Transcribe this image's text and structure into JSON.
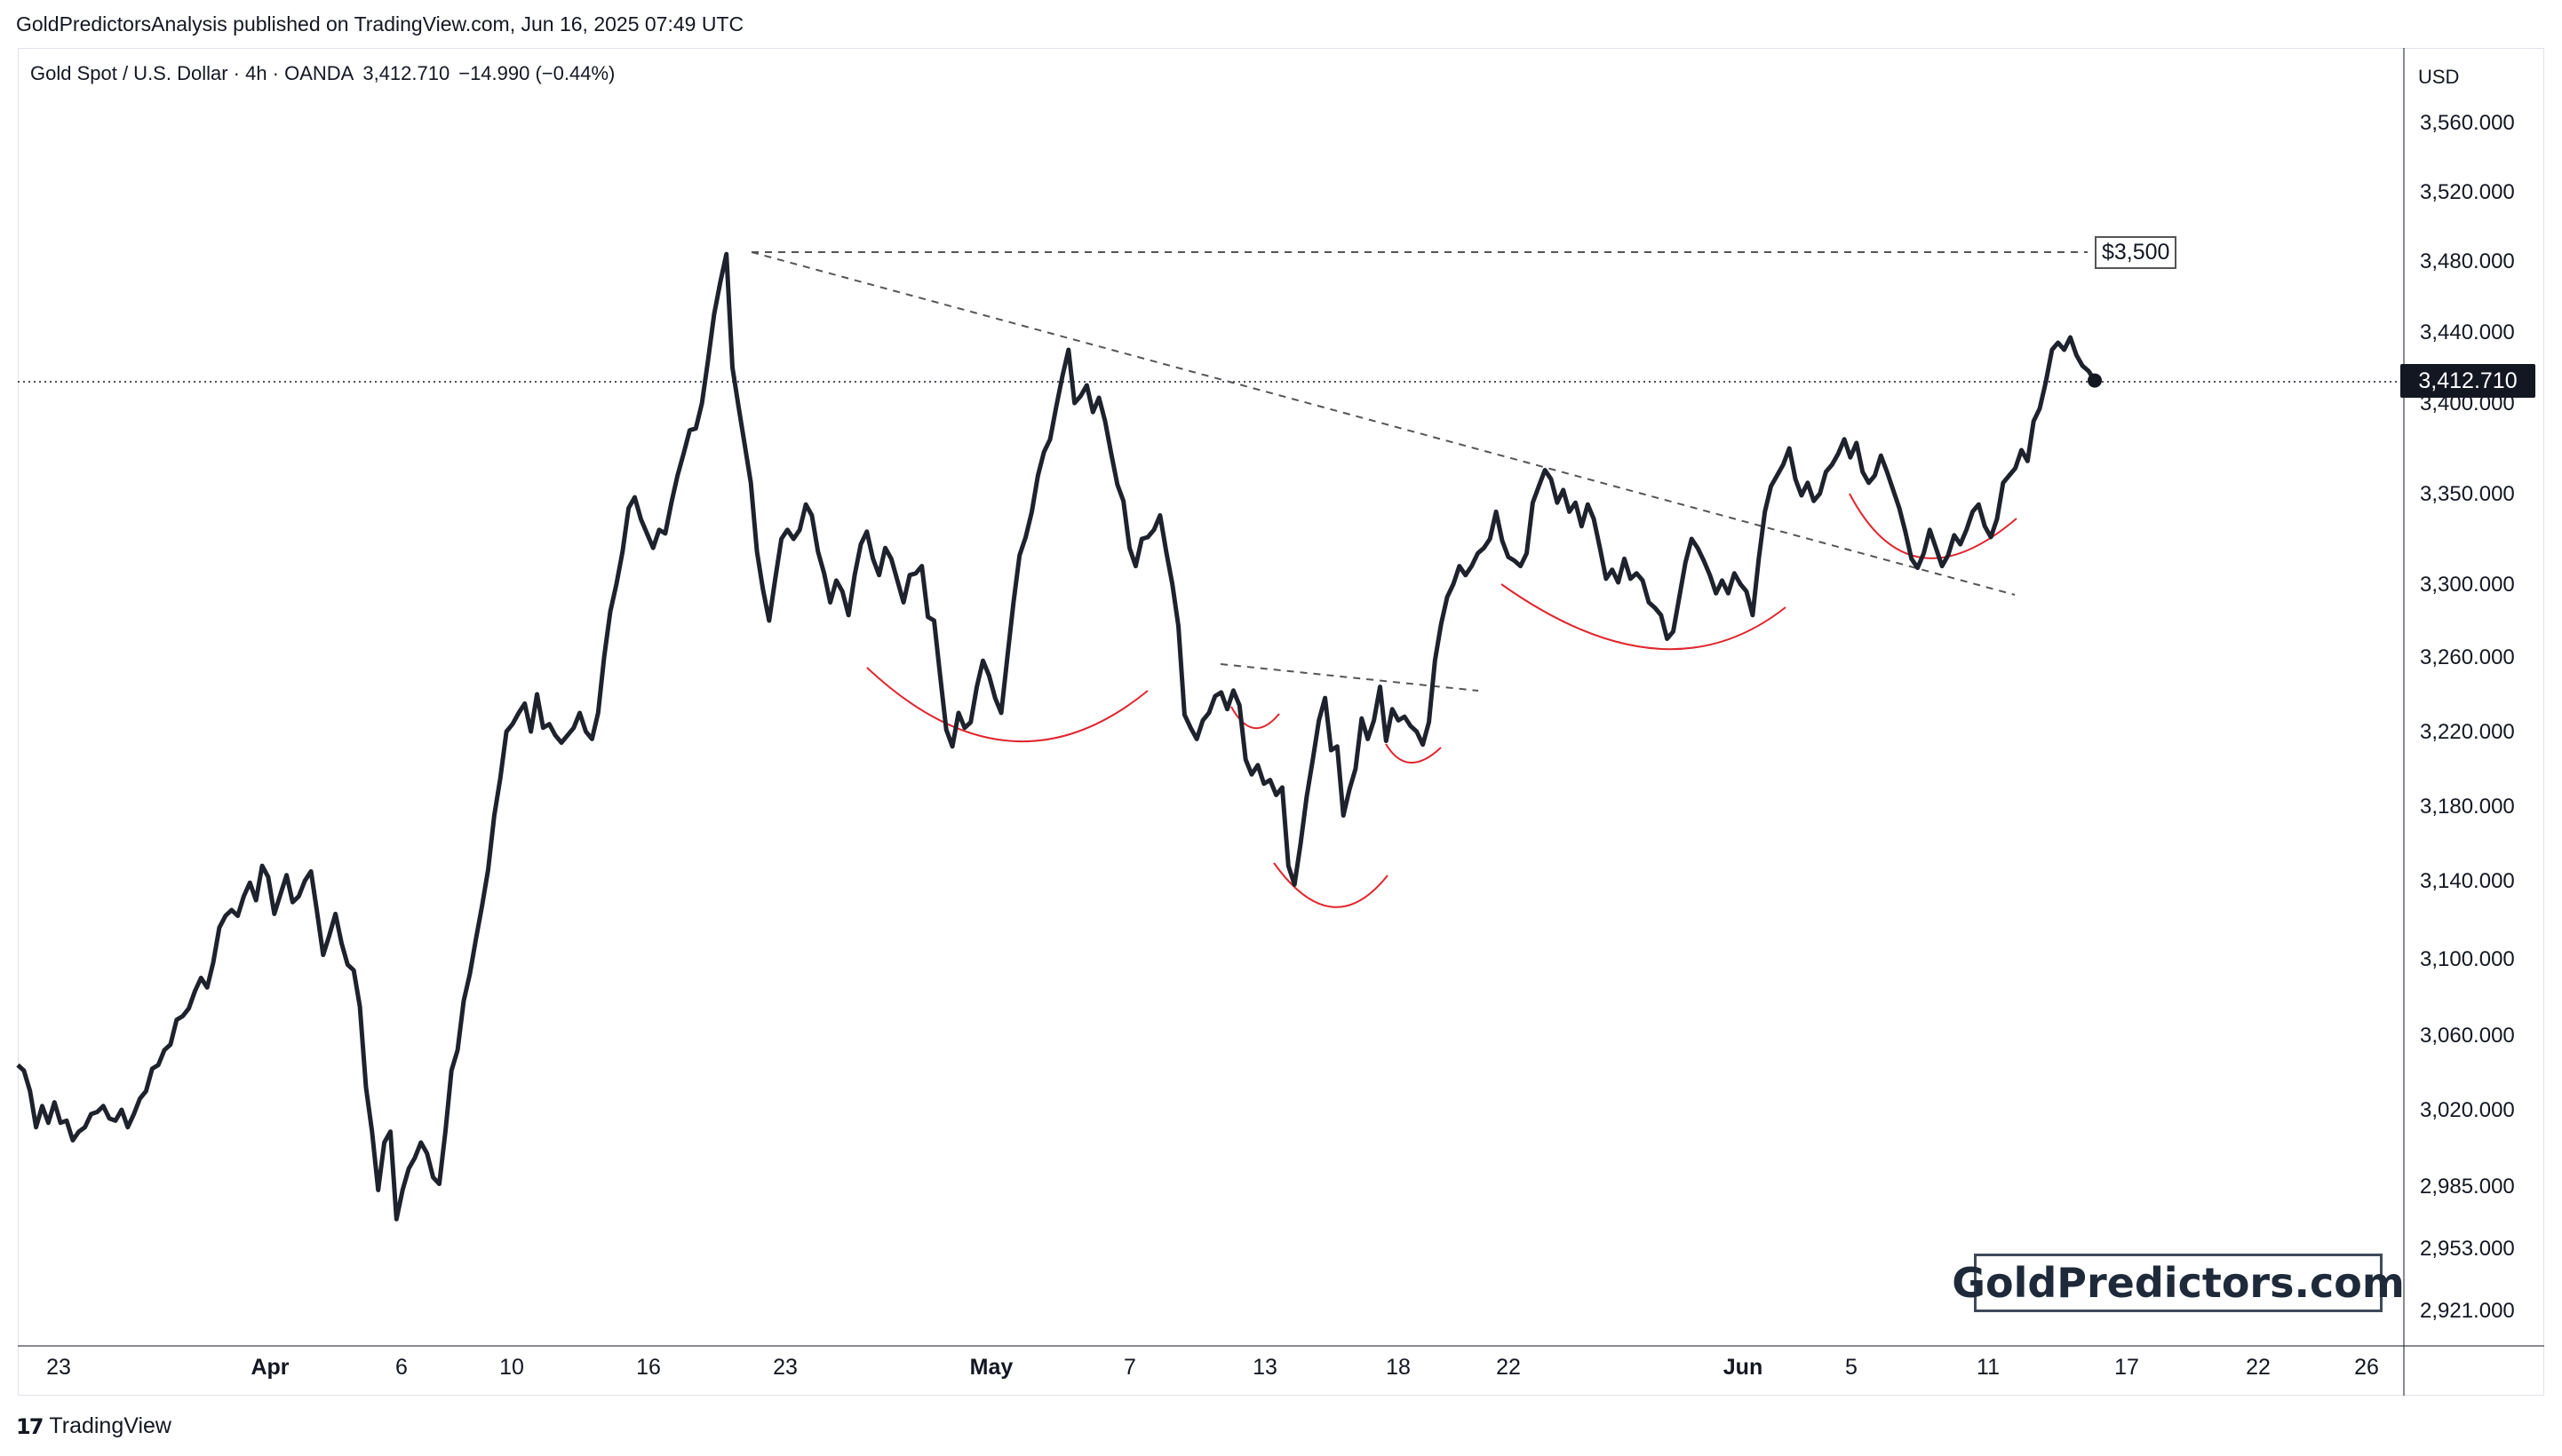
{
  "header": {
    "published": "GoldPredictorsAnalysis published on TradingView.com, Jun 16, 2025 07:49 UTC"
  },
  "legend": {
    "symbol": "Gold Spot / U.S. Dollar · 4h · OANDA",
    "last": "3,412.710",
    "change": "−14.990 (−0.44%)"
  },
  "price_axis": {
    "currency": "USD",
    "last_price_label": "3,412.710"
  },
  "annotations": {
    "target_label": "$3,500"
  },
  "watermark": "GoldPredictors.com",
  "footer": {
    "brand": "TradingView",
    "logo": "17"
  },
  "colors": {
    "price_line": "#1e222d",
    "arc": "#e0262e",
    "dashed": "#555555",
    "badge_bg": "#131722"
  },
  "chart_data": {
    "type": "line",
    "series": [
      {
        "values": [
          3044,
          3041,
          3030,
          3012,
          3022,
          3014,
          3024,
          3014,
          3015,
          3006,
          3010,
          3012,
          3018,
          3019,
          3022,
          3016,
          3015,
          3020,
          3012,
          3018,
          3026,
          3030,
          3042,
          3044,
          3052,
          3055,
          3068,
          3070,
          3074,
          3083,
          3090,
          3085,
          3098,
          3116,
          3122,
          3125,
          3122,
          3132,
          3139,
          3130,
          3148,
          3142,
          3123,
          3133,
          3143,
          3129,
          3132,
          3140,
          3145,
          3124,
          3102,
          3112,
          3123,
          3108,
          3097,
          3094,
          3075,
          3032,
          3010,
          2983,
          3005,
          3010,
          2968,
          2983,
          2993,
          2998,
          3005,
          3000,
          2989,
          2986,
          3010,
          3041,
          3052,
          3078,
          3092,
          3110,
          3127,
          3146,
          3175,
          3195,
          3220,
          3224,
          3230,
          3235,
          3220,
          3240,
          3222,
          3224,
          3218,
          3214,
          3218,
          3222,
          3230,
          3220,
          3216,
          3230,
          3260,
          3285,
          3300,
          3318,
          3342,
          3348,
          3336,
          3328,
          3320,
          3330,
          3328,
          3345,
          3360,
          3372,
          3385,
          3386,
          3400,
          3424,
          3450,
          3468,
          3484,
          3420,
          3398,
          3377,
          3356,
          3318,
          3297,
          3280,
          3303,
          3325,
          3330,
          3325,
          3330,
          3344,
          3338,
          3318,
          3306,
          3290,
          3302,
          3296,
          3283,
          3305,
          3322,
          3329,
          3314,
          3305,
          3320,
          3314,
          3302,
          3290,
          3305,
          3306,
          3310,
          3282,
          3280,
          3250,
          3221,
          3212,
          3230,
          3222,
          3225,
          3244,
          3258,
          3250,
          3238,
          3230,
          3260,
          3290,
          3316,
          3326,
          3340,
          3360,
          3373,
          3380,
          3398,
          3415,
          3430,
          3400,
          3404,
          3410,
          3395,
          3403,
          3390,
          3372,
          3355,
          3346,
          3320,
          3310,
          3325,
          3326,
          3330,
          3338,
          3318,
          3300,
          3277,
          3229,
          3222,
          3216,
          3226,
          3230,
          3239,
          3241,
          3232,
          3242,
          3234,
          3205,
          3197,
          3202,
          3192,
          3194,
          3186,
          3190,
          3148,
          3138,
          3160,
          3185,
          3205,
          3226,
          3238,
          3210,
          3212,
          3175,
          3189,
          3200,
          3227,
          3216,
          3226,
          3244,
          3215,
          3232,
          3226,
          3228,
          3223,
          3220,
          3213,
          3225,
          3258,
          3278,
          3293,
          3300,
          3310,
          3305,
          3310,
          3317,
          3320,
          3325,
          3340,
          3324,
          3315,
          3313,
          3310,
          3317,
          3345,
          3354,
          3363,
          3358,
          3345,
          3352,
          3340,
          3345,
          3332,
          3344,
          3336,
          3320,
          3303,
          3308,
          3301,
          3314,
          3303,
          3306,
          3302,
          3290,
          3287,
          3283,
          3270,
          3274,
          3293,
          3312,
          3325,
          3320,
          3313,
          3305,
          3295,
          3302,
          3295,
          3306,
          3300,
          3296,
          3283,
          3314,
          3340,
          3354,
          3360,
          3366,
          3375,
          3358,
          3349,
          3356,
          3346,
          3350,
          3362,
          3366,
          3372,
          3380,
          3370,
          3378,
          3362,
          3356,
          3360,
          3371,
          3362,
          3352,
          3342,
          3329,
          3314,
          3309,
          3317,
          3330,
          3320,
          3310,
          3316,
          3327,
          3322,
          3330,
          3340,
          3344,
          3332,
          3326,
          3336,
          3356,
          3360,
          3364,
          3374,
          3368,
          3390,
          3397,
          3412,
          3430,
          3434,
          3430,
          3437,
          3427,
          3421,
          3418,
          3412.71
        ]
      }
    ],
    "x_ticks": [
      "23",
      "Apr",
      "6",
      "10",
      "16",
      "23",
      "May",
      "7",
      "13",
      "18",
      "22",
      "Jun",
      "5",
      "11",
      "17",
      "22",
      "26"
    ],
    "y_ticks": [
      "3,560.000",
      "3,520.000",
      "3,480.000",
      "3,440.000",
      "3,400.000",
      "3,350.000",
      "3,300.000",
      "3,260.000",
      "3,220.000",
      "3,180.000",
      "3,140.000",
      "3,100.000",
      "3,060.000",
      "3,020.000",
      "2,985.000",
      "2,953.000",
      "2,921.000"
    ],
    "last_value": 3412.71,
    "target_level": 3500,
    "ylim": [
      2921,
      3560
    ],
    "grid": false,
    "legend": "none"
  }
}
